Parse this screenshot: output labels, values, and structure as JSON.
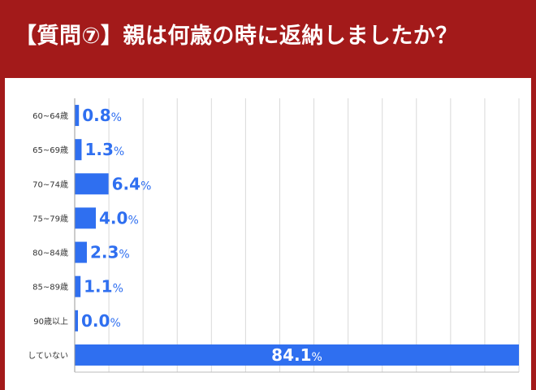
{
  "header": {
    "title": "【質問⑦】親は何歳の時に返納しましたか？"
  },
  "colors": {
    "header_bg": "#a31a1a",
    "bar": "#2f6ff0",
    "label_value": "#2f6ff0",
    "label_inside": "#ffffff",
    "grid": "#d9d9d9"
  },
  "chart_data": {
    "type": "bar",
    "orientation": "horizontal",
    "title": "",
    "xlabel": "",
    "ylabel": "",
    "xlim": [
      0,
      84.1
    ],
    "grid": true,
    "categories": [
      "60~64歳",
      "65~69歳",
      "70~74歳",
      "75~79歳",
      "80~84歳",
      "85~89歳",
      "90歳以上",
      "していない"
    ],
    "values": [
      0.8,
      1.3,
      6.4,
      4.0,
      2.3,
      1.1,
      0.0,
      84.1
    ],
    "value_labels": [
      "0.8",
      "1.3",
      "6.4",
      "4.0",
      "2.3",
      "1.1",
      "0.0",
      "84.1"
    ],
    "unit": "%"
  }
}
